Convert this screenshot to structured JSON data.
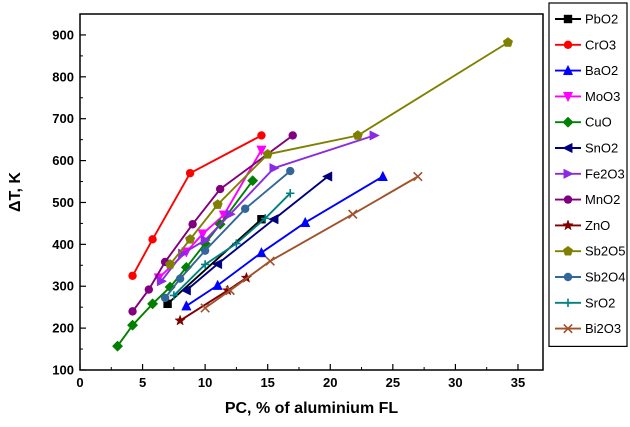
{
  "chart_data": {
    "type": "line",
    "xlabel": "PC, % of aluminium FL",
    "ylabel": "ΔT, K",
    "xlim": [
      0,
      37
    ],
    "ylim": [
      100,
      950
    ],
    "x_ticks": [
      0,
      5,
      10,
      15,
      20,
      25,
      30,
      35
    ],
    "y_ticks": [
      100,
      200,
      300,
      400,
      500,
      600,
      700,
      800,
      900
    ],
    "grid": false,
    "legend_position": "right",
    "series": [
      {
        "name": "PbO2",
        "color": "#000000",
        "marker": "square",
        "x": [
          7.0,
          14.5
        ],
        "y": [
          258,
          460
        ]
      },
      {
        "name": "CrO3",
        "color": "#ff0000",
        "marker": "circle",
        "x": [
          4.2,
          5.8,
          8.8,
          14.5
        ],
        "y": [
          325,
          412,
          570,
          660
        ]
      },
      {
        "name": "BaO2",
        "color": "#0000ff",
        "marker": "triangle-up",
        "x": [
          8.5,
          11.0,
          14.5,
          18.0,
          24.2
        ],
        "y": [
          253,
          302,
          380,
          452,
          562
        ]
      },
      {
        "name": "MoO3",
        "color": "#ff00ff",
        "marker": "triangle-down",
        "x": [
          6.3,
          8.5,
          9.8,
          11.5,
          14.5
        ],
        "y": [
          320,
          382,
          425,
          470,
          625
        ]
      },
      {
        "name": "CuO",
        "color": "#008000",
        "marker": "diamond",
        "x": [
          3.0,
          4.2,
          5.8,
          7.2,
          8.5,
          10.0,
          11.2,
          13.8
        ],
        "y": [
          157,
          207,
          258,
          298,
          345,
          402,
          448,
          552
        ]
      },
      {
        "name": "SnO2",
        "color": "#000080",
        "marker": "triangle-left",
        "x": [
          8.5,
          11.0,
          15.5,
          19.8
        ],
        "y": [
          290,
          353,
          460,
          562
        ]
      },
      {
        "name": "Fe2O3",
        "color": "#8a2be2",
        "marker": "triangle-right",
        "x": [
          6.5,
          8.2,
          10.0,
          12.0,
          15.5,
          23.5
        ],
        "y": [
          312,
          378,
          410,
          472,
          582,
          660
        ]
      },
      {
        "name": "MnO2",
        "color": "#800080",
        "marker": "circle",
        "x": [
          4.2,
          5.5,
          6.8,
          9.0,
          11.2,
          17.0
        ],
        "y": [
          240,
          292,
          358,
          448,
          532,
          660
        ]
      },
      {
        "name": "ZnO",
        "color": "#800000",
        "marker": "star",
        "x": [
          8.0,
          11.8,
          13.3
        ],
        "y": [
          218,
          290,
          320
        ]
      },
      {
        "name": "Sb2O5",
        "color": "#808000",
        "marker": "pentagon",
        "x": [
          7.2,
          8.8,
          11.0,
          15.0,
          22.2,
          34.2
        ],
        "y": [
          352,
          412,
          495,
          615,
          660,
          882
        ]
      },
      {
        "name": "Sb2O4",
        "color": "#336699",
        "marker": "circle",
        "x": [
          6.8,
          8.0,
          10.0,
          13.2,
          16.8
        ],
        "y": [
          272,
          318,
          385,
          485,
          575
        ]
      },
      {
        "name": "SrO2",
        "color": "#008080",
        "marker": "plus",
        "x": [
          7.5,
          10.0,
          12.5,
          14.8,
          16.8
        ],
        "y": [
          278,
          352,
          402,
          462,
          522
        ]
      },
      {
        "name": "Bi2O3",
        "color": "#a0522d",
        "marker": "x",
        "x": [
          10.0,
          12.0,
          15.2,
          21.8,
          27.0
        ],
        "y": [
          248,
          290,
          360,
          472,
          562
        ]
      }
    ]
  }
}
